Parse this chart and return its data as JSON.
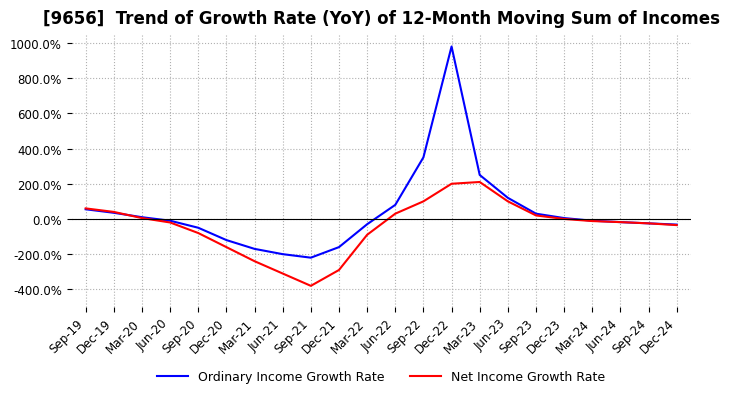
{
  "title": "[9656]  Trend of Growth Rate (YoY) of 12-Month Moving Sum of Incomes",
  "legend_labels": [
    "Ordinary Income Growth Rate",
    "Net Income Growth Rate"
  ],
  "line_colors": [
    "blue",
    "red"
  ],
  "ylim": [
    -500,
    1050
  ],
  "yticks": [
    -400,
    -200,
    0,
    200,
    400,
    600,
    800,
    1000
  ],
  "ytick_labels": [
    "-400.0%",
    "-200.0%",
    "0.0%",
    "200.0%",
    "400.0%",
    "600.0%",
    "800.0%",
    "1000.0%"
  ],
  "x_labels": [
    "Sep-19",
    "Dec-19",
    "Mar-20",
    "Jun-20",
    "Sep-20",
    "Dec-20",
    "Mar-21",
    "Jun-21",
    "Sep-21",
    "Dec-21",
    "Mar-22",
    "Jun-22",
    "Sep-22",
    "Dec-22",
    "Mar-23",
    "Jun-23",
    "Sep-23",
    "Dec-23",
    "Mar-24",
    "Jun-24",
    "Sep-24",
    "Dec-24"
  ],
  "ordinary_income": [
    55,
    35,
    10,
    -10,
    -50,
    -120,
    -170,
    -200,
    -220,
    -160,
    -30,
    80,
    350,
    980,
    250,
    120,
    30,
    5,
    -10,
    -18,
    -25,
    -32
  ],
  "net_income": [
    60,
    40,
    5,
    -20,
    -80,
    -160,
    -240,
    -310,
    -380,
    -290,
    -90,
    30,
    100,
    200,
    210,
    100,
    20,
    0,
    -12,
    -18,
    -25,
    -35
  ],
  "background_color": "#ffffff",
  "grid_color": "#b0b0b0",
  "title_fontsize": 12,
  "tick_fontsize": 8.5
}
